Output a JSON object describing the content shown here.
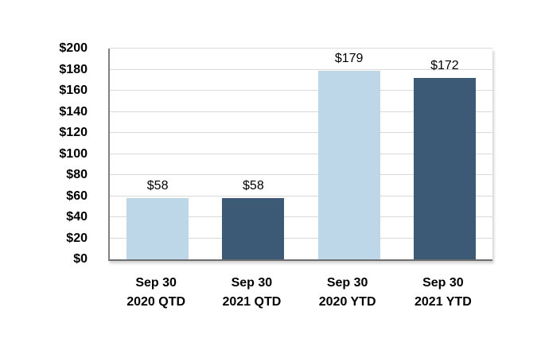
{
  "chart_data": {
    "type": "bar",
    "title": "",
    "xlabel": "",
    "ylabel": "",
    "categories": [
      [
        "Sep 30",
        "2020 QTD"
      ],
      [
        "Sep 30",
        "2021 QTD"
      ],
      [
        "Sep 30",
        "2020 YTD"
      ],
      [
        "Sep 30",
        "2021 YTD"
      ]
    ],
    "values": [
      58,
      58,
      179,
      172
    ],
    "value_labels": [
      "$58",
      "$58",
      "$179",
      "$172"
    ],
    "bar_colors": [
      "#BDD7E8",
      "#3C5A75",
      "#BDD7E8",
      "#3C5A75"
    ],
    "ylim": [
      0,
      200
    ],
    "y_tick_step": 20,
    "y_ticks": [
      {
        "value": 0,
        "label": "$0"
      },
      {
        "value": 20,
        "label": "$20"
      },
      {
        "value": 40,
        "label": "$40"
      },
      {
        "value": 60,
        "label": "$60"
      },
      {
        "value": 80,
        "label": "$80"
      },
      {
        "value": 100,
        "label": "$100"
      },
      {
        "value": 120,
        "label": "$120"
      },
      {
        "value": 140,
        "label": "$140"
      },
      {
        "value": 160,
        "label": "$160"
      },
      {
        "value": 180,
        "label": "$180"
      },
      {
        "value": 200,
        "label": "$200"
      }
    ],
    "grid": true,
    "legend": null,
    "palette": {
      "light_blue": "#BDD7E8",
      "dark_blue": "#3C5A75",
      "gridline": "#D9D9D9",
      "axis": "#808080",
      "text": "#000000",
      "background": "#FFFFFF"
    }
  }
}
